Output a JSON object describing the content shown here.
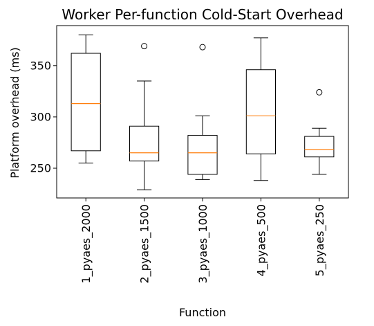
{
  "chart_data": {
    "type": "box",
    "title": "Worker Per-function Cold-Start Overhead",
    "xlabel": "Function",
    "ylabel": "Platform overhead (ms)",
    "ylim": [
      221,
      389
    ],
    "yticks": [
      250,
      300,
      350
    ],
    "grid": false,
    "categories": [
      "1_pyaes_2000",
      "2_pyaes_1500",
      "3_pyaes_1000",
      "4_pyaes_500",
      "5_pyaes_250"
    ],
    "boxes": [
      {
        "whisker_low": 255,
        "q1": 267,
        "median": 313,
        "q3": 362,
        "whisker_high": 380,
        "outliers": []
      },
      {
        "whisker_low": 229,
        "q1": 257,
        "median": 265,
        "q3": 291,
        "whisker_high": 335,
        "outliers": [
          369
        ]
      },
      {
        "whisker_low": 239,
        "q1": 244,
        "median": 265,
        "q3": 282,
        "whisker_high": 301,
        "outliers": [
          368
        ]
      },
      {
        "whisker_low": 238,
        "q1": 264,
        "median": 301,
        "q3": 346,
        "whisker_high": 377,
        "outliers": []
      },
      {
        "whisker_low": 244,
        "q1": 261,
        "median": 268,
        "q3": 281,
        "whisker_high": 289,
        "outliers": [
          324
        ]
      }
    ],
    "colors": {
      "box": "#000000",
      "median": "#ff7f0e",
      "outlier": "#000000"
    }
  }
}
